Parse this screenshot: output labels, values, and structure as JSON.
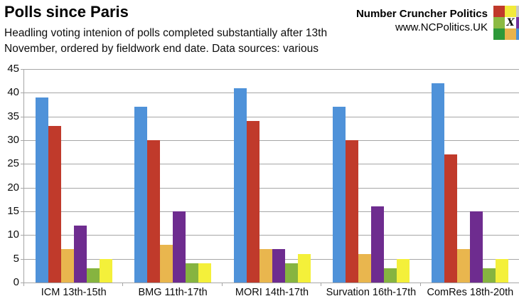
{
  "header": {
    "title": "Polls since Paris",
    "subtitle_line1": "Headling voting intenion of polls completed substantially after 13th",
    "subtitle_line2": "November, ordered by fieldwork end date. Data sources: various",
    "brand_name": "Number Cruncher Politics",
    "brand_url": "www.NCPolitics.UK",
    "logo": {
      "center_letter": "X",
      "grid_colors": [
        [
          "#c0392b",
          "#f2ea3a",
          "#c8c8c8"
        ],
        [
          "#8cba43",
          "#ffffff",
          "#7030a0"
        ],
        [
          "#2e9939",
          "#e8b34c",
          "#4a90d9"
        ]
      ]
    }
  },
  "chart_data": {
    "type": "bar",
    "title": "Polls since Paris",
    "xlabel": "",
    "ylabel": "",
    "ylim": [
      0,
      45
    ],
    "yticks": [
      0,
      5,
      10,
      15,
      20,
      25,
      30,
      35,
      40,
      45
    ],
    "grid": true,
    "legend": "none",
    "gridline_color": "#a6a6a6",
    "categories": [
      "ICM 13th-15th",
      "BMG 11th-17th",
      "MORI 14th-17th",
      "Survation 16th-17th",
      "ComRes 18th-20th"
    ],
    "series": [
      {
        "name": "blue",
        "color": "#4f92d9",
        "values": [
          39,
          37,
          41,
          37,
          42
        ]
      },
      {
        "name": "red",
        "color": "#c03a2b",
        "values": [
          33,
          30,
          34,
          30,
          27
        ]
      },
      {
        "name": "orange",
        "color": "#e9b64e",
        "values": [
          7,
          8,
          7,
          6,
          7
        ]
      },
      {
        "name": "purple",
        "color": "#6e2c8f",
        "values": [
          12,
          15,
          7,
          16,
          15
        ]
      },
      {
        "name": "green",
        "color": "#86b440",
        "values": [
          3,
          4,
          4,
          3,
          3
        ]
      },
      {
        "name": "yellow",
        "color": "#f4f03a",
        "values": [
          5,
          4,
          6,
          5,
          5
        ]
      }
    ]
  }
}
